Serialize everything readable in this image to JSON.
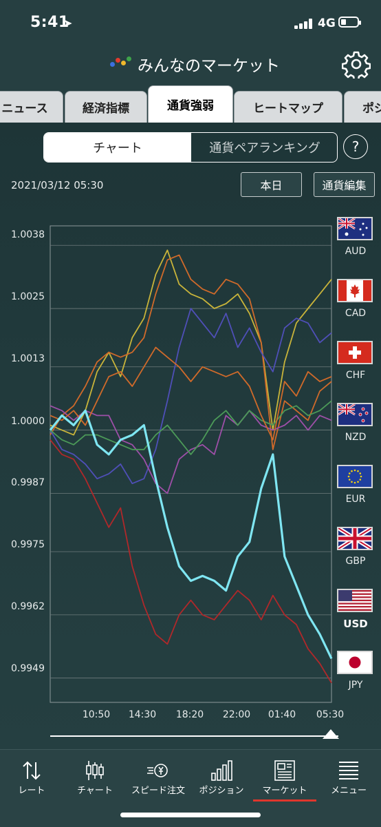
{
  "status_bar": {
    "time": "5:41",
    "network": "4G"
  },
  "header": {
    "title": "みんなのマーケット"
  },
  "tabs": [
    {
      "label": "ニュース",
      "active": false
    },
    {
      "label": "経済指標",
      "active": false
    },
    {
      "label": "通貨強弱",
      "active": true
    },
    {
      "label": "ヒートマップ",
      "active": false
    },
    {
      "label": "ポジ",
      "active": false
    }
  ],
  "segment": {
    "active": "チャート",
    "inactive": "通貨ペアランキング",
    "help": "?"
  },
  "toolbar": {
    "date": "2021/03/12 05:30",
    "today_label": "本日",
    "edit_label": "通貨編集"
  },
  "chart_data": {
    "type": "line",
    "title": "",
    "xlabel": "",
    "ylabel": "",
    "y_ticks": [
      "1.0038",
      "1.0025",
      "1.0013",
      "1.0000",
      "0.9987",
      "0.9975",
      "0.9962",
      "0.9949"
    ],
    "x_ticks": [
      "10:50",
      "14:30",
      "18:20",
      "22:00",
      "01:40",
      "05:30"
    ],
    "ylim": [
      0.9944,
      1.0042
    ],
    "x": [
      0,
      1,
      2,
      3,
      4,
      5,
      6,
      7,
      8,
      9,
      10,
      11,
      12,
      13,
      14,
      15,
      16,
      17,
      18,
      19,
      20,
      21,
      22,
      23,
      24
    ],
    "grid": true,
    "series": [
      {
        "name": "AUD",
        "color": "#c9b43a",
        "values": [
          1.0001,
          1.0,
          0.9999,
          1.0004,
          1.0012,
          1.0016,
          1.0011,
          1.0019,
          1.0023,
          1.0032,
          1.0037,
          1.003,
          1.0028,
          1.0027,
          1.0025,
          1.0026,
          1.0028,
          1.0024,
          1.0018,
          1.0,
          1.0014,
          1.0022,
          1.0025,
          1.0028,
          1.0031
        ]
      },
      {
        "name": "CAD",
        "color": "#d06a2a",
        "values": [
          0.9999,
          1.0003,
          1.0005,
          1.0009,
          1.0014,
          1.0016,
          1.0015,
          1.0016,
          1.0019,
          1.0028,
          1.0035,
          1.0036,
          1.0031,
          1.0029,
          1.0028,
          1.0031,
          1.003,
          1.0027,
          1.0018,
          0.9996,
          1.0006,
          1.0004,
          1.0002,
          1.0008,
          1.001
        ]
      },
      {
        "name": "CHF",
        "color": "#4f4fb8",
        "values": [
          1.0,
          0.9996,
          0.9995,
          0.9993,
          0.999,
          0.9991,
          0.9993,
          0.9989,
          0.999,
          0.9996,
          1.0006,
          1.0017,
          1.0025,
          1.0022,
          1.0019,
          1.0024,
          1.0017,
          1.0021,
          1.0016,
          1.0012,
          1.0021,
          1.0023,
          1.0022,
          1.0018,
          1.002
        ]
      },
      {
        "name": "NZD",
        "color": "#9e4fa8",
        "values": [
          1.0005,
          1.0004,
          1.0002,
          1.0004,
          1.0003,
          1.0003,
          0.9998,
          0.9997,
          0.9994,
          0.9989,
          0.9987,
          0.9994,
          0.9996,
          0.9997,
          0.9995,
          1.0003,
          1.0001,
          1.0004,
          1.0001,
          1.0,
          1.0001,
          1.0003,
          1.0,
          1.0003,
          1.0002
        ]
      },
      {
        "name": "EUR",
        "color": "#4c9a58",
        "values": [
          1.0,
          0.9998,
          0.9997,
          0.9999,
          0.9999,
          0.9998,
          0.9997,
          0.9996,
          0.9996,
          0.9999,
          1.0001,
          0.9998,
          0.9995,
          0.9998,
          1.0002,
          1.0004,
          1.0001,
          1.0004,
          1.0002,
          1.0001,
          1.0004,
          1.0005,
          1.0003,
          1.0004,
          1.0006
        ]
      },
      {
        "name": "GBP",
        "color": "#d06a2a",
        "values": [
          1.0003,
          1.0002,
          1.0004,
          1.0001,
          1.0006,
          1.0011,
          1.0012,
          1.0009,
          1.0013,
          1.0017,
          1.0015,
          1.0013,
          1.001,
          1.0013,
          1.0012,
          1.0011,
          1.0012,
          1.0009,
          1.0003,
          0.9998,
          1.001,
          1.0007,
          1.0012,
          1.001,
          1.0011
        ]
      },
      {
        "name": "USD",
        "color": "#7fe6f2",
        "values": [
          1.0,
          1.0003,
          1.0001,
          1.0004,
          0.9997,
          0.9995,
          0.9998,
          0.9999,
          1.0001,
          0.999,
          0.998,
          0.9972,
          0.9969,
          0.997,
          0.9969,
          0.9967,
          0.9974,
          0.9977,
          0.9988,
          0.9995,
          0.9974,
          0.9968,
          0.9962,
          0.9958,
          0.9953
        ]
      },
      {
        "name": "JPY",
        "color": "#b0282a",
        "values": [
          0.9998,
          0.9995,
          0.9994,
          0.999,
          0.9985,
          0.998,
          0.9984,
          0.9972,
          0.9964,
          0.9958,
          0.9956,
          0.9962,
          0.9965,
          0.9962,
          0.9961,
          0.9964,
          0.9967,
          0.9965,
          0.9961,
          0.9966,
          0.9962,
          0.996,
          0.9955,
          0.9952,
          0.9948
        ]
      }
    ]
  },
  "legend": [
    {
      "code": "AUD",
      "flag": "australia-flag-icon"
    },
    {
      "code": "CAD",
      "flag": "canada-flag-icon"
    },
    {
      "code": "CHF",
      "flag": "switzerland-flag-icon"
    },
    {
      "code": "NZD",
      "flag": "new-zealand-flag-icon"
    },
    {
      "code": "EUR",
      "flag": "eu-flag-icon"
    },
    {
      "code": "GBP",
      "flag": "uk-flag-icon"
    },
    {
      "code": "USD",
      "flag": "usa-flag-icon",
      "highlighted": true
    },
    {
      "code": "JPY",
      "flag": "japan-flag-icon"
    }
  ],
  "bottom_nav": [
    {
      "label": "レート",
      "icon": "rate-arrows-icon"
    },
    {
      "label": "チャート",
      "icon": "candlestick-icon"
    },
    {
      "label": "スピード注文",
      "icon": "speed-order-icon"
    },
    {
      "label": "ポジション",
      "icon": "position-bars-icon"
    },
    {
      "label": "マーケット",
      "icon": "market-newspaper-icon",
      "active": true
    },
    {
      "label": "メニュー",
      "icon": "menu-list-icon"
    }
  ],
  "colors": {
    "accent": "#e0362c",
    "background": "#243e40",
    "highlight_line": "#7fe6f2"
  }
}
